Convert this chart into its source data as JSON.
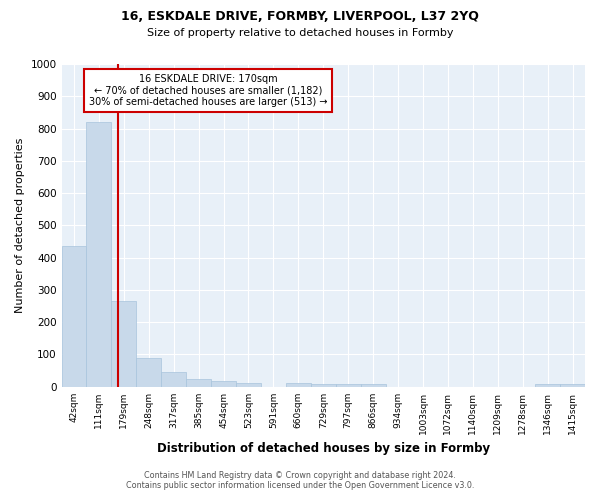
{
  "title1": "16, ESKDALE DRIVE, FORMBY, LIVERPOOL, L37 2YQ",
  "title2": "Size of property relative to detached houses in Formby",
  "xlabel": "Distribution of detached houses by size in Formby",
  "ylabel": "Number of detached properties",
  "categories": [
    "42sqm",
    "111sqm",
    "179sqm",
    "248sqm",
    "317sqm",
    "385sqm",
    "454sqm",
    "523sqm",
    "591sqm",
    "660sqm",
    "729sqm",
    "797sqm",
    "866sqm",
    "934sqm",
    "1003sqm",
    "1072sqm",
    "1140sqm",
    "1209sqm",
    "1278sqm",
    "1346sqm",
    "1415sqm"
  ],
  "values": [
    435,
    820,
    265,
    90,
    47,
    23,
    17,
    11,
    0,
    11,
    9,
    8,
    8,
    0,
    0,
    0,
    0,
    0,
    0,
    9,
    8
  ],
  "bar_color": "#c8d9ea",
  "bar_edgecolor": "#a8c4dc",
  "annotation_line1": "16 ESKDALE DRIVE: 170sqm",
  "annotation_line2": "← 70% of detached houses are smaller (1,182)",
  "annotation_line3": "30% of semi-detached houses are larger (513) →",
  "annotation_box_facecolor": "#ffffff",
  "annotation_box_edgecolor": "#cc0000",
  "red_line_color": "#cc0000",
  "ylim": [
    0,
    1000
  ],
  "yticks": [
    0,
    100,
    200,
    300,
    400,
    500,
    600,
    700,
    800,
    900,
    1000
  ],
  "footnote1": "Contains HM Land Registry data © Crown copyright and database right 2024.",
  "footnote2": "Contains public sector information licensed under the Open Government Licence v3.0.",
  "fig_facecolor": "#ffffff",
  "plot_bg_color": "#e8f0f8"
}
